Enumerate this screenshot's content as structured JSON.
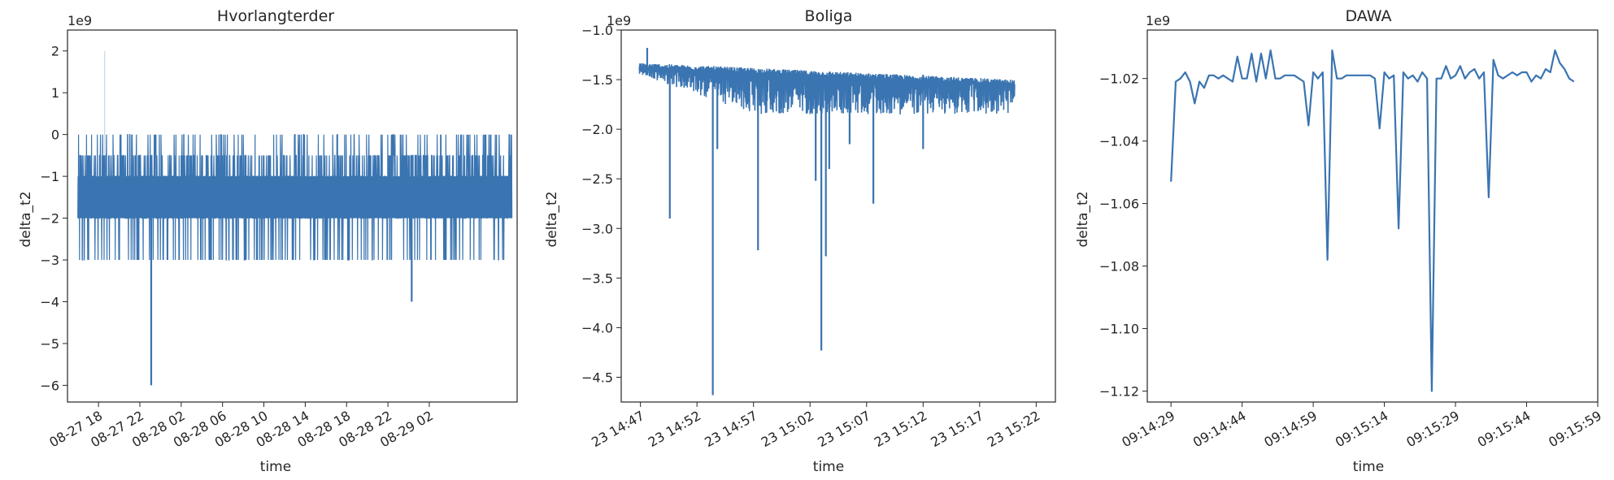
{
  "chart_data": [
    {
      "type": "line",
      "title": "Hvorlangterder",
      "xlabel": "time",
      "ylabel": "delta_t2",
      "y_offset_label": "1e9",
      "y_multiplier": 1000000000,
      "ylim": [
        -6.4,
        2.5
      ],
      "yticks": [
        2,
        1,
        0,
        -1,
        -2,
        -3,
        -4,
        -5,
        -6
      ],
      "ytick_labels": [
        "2",
        "1",
        "0",
        "−1",
        "−2",
        "−3",
        "−4",
        "−5",
        "−6"
      ],
      "xlim": [
        -1.0,
        42.5
      ],
      "xticks": [
        2,
        6,
        10,
        14,
        18,
        22,
        26,
        30,
        34
      ],
      "xtick_labels": [
        "08-27 18",
        "08-27 22",
        "08-28 02",
        "08-28 06",
        "08-28 10",
        "08-28 14",
        "08-28 18",
        "08-28 22",
        "08-29 02"
      ],
      "color": "#3a74b1",
      "x_start": 0.0,
      "x_end": 42.0,
      "series": [
        {
          "levels": [
            -3,
            -2,
            -1,
            -0.5,
            0
          ]
        },
        {
          "spikes": [
            {
              "x": 2.6,
              "y": 2
            },
            {
              "x": 7.1,
              "y": -6
            },
            {
              "x": 32.3,
              "y": -4
            }
          ]
        }
      ]
    },
    {
      "type": "line",
      "title": "Boliga",
      "xlabel": "time",
      "ylabel": "delta_t2",
      "y_offset_label": "1e9",
      "y_multiplier": 1000000000,
      "ylim": [
        -4.75,
        -1.0
      ],
      "yticks": [
        -1.0,
        -1.5,
        -2.0,
        -2.5,
        -3.0,
        -3.5,
        -4.0,
        -4.5
      ],
      "ytick_labels": [
        "−1.0",
        "−1.5",
        "−2.0",
        "−2.5",
        "−3.0",
        "−3.5",
        "−4.0",
        "−4.5"
      ],
      "xlim": [
        -1.7,
        36.7
      ],
      "xticks": [
        0,
        5,
        10,
        15,
        20,
        25,
        30,
        35
      ],
      "xtick_labels": [
        "23 14:47",
        "23 14:52",
        "23 14:57",
        "23 15:02",
        "23 15:07",
        "23 15:12",
        "23 15:17",
        "23 15:22"
      ],
      "color": "#3a74b1",
      "x_start": -0.1,
      "x_end": 33.1,
      "series": [
        {
          "upper_envelope": [
            [
              -0.1,
              -1.4
            ],
            [
              33.1,
              -1.55
            ]
          ]
        },
        {
          "lower_envelope": [
            [
              -0.1,
              -1.45
            ],
            [
              10,
              -1.85
            ],
            [
              33.1,
              -1.85
            ]
          ]
        },
        {
          "spikes": [
            {
              "x": 0.6,
              "y": -1.18
            },
            {
              "x": 2.6,
              "y": -2.9
            },
            {
              "x": 6.4,
              "y": -4.68
            },
            {
              "x": 6.8,
              "y": -2.2
            },
            {
              "x": 10.4,
              "y": -3.22
            },
            {
              "x": 15.5,
              "y": -2.52
            },
            {
              "x": 16.0,
              "y": -4.23
            },
            {
              "x": 16.4,
              "y": -3.28
            },
            {
              "x": 16.7,
              "y": -2.4
            },
            {
              "x": 20.6,
              "y": -2.75
            },
            {
              "x": 18.5,
              "y": -2.15
            },
            {
              "x": 25.0,
              "y": -2.2
            }
          ]
        }
      ]
    },
    {
      "type": "line",
      "title": "DAWA",
      "xlabel": "time",
      "ylabel": "delta_t2",
      "y_offset_label": "1e9",
      "y_multiplier": 1000000000,
      "ylim": [
        -1.1235,
        -1.0045
      ],
      "yticks": [
        -1.02,
        -1.04,
        -1.06,
        -1.08,
        -1.1,
        -1.12
      ],
      "ytick_labels": [
        "−1.02",
        "−1.04",
        "−1.06",
        "−1.08",
        "−1.10",
        "−1.12"
      ],
      "xlim": [
        -5.0,
        90.0
      ],
      "xticks": [
        10,
        25,
        40,
        55,
        70,
        85
      ],
      "xtick_labels": [
        "09:14:29",
        "09:14:44",
        "09:14:59",
        "09:15:14",
        "09:15:29",
        "09:15:44",
        "09:15:59"
      ],
      "xticks_full": [
        0,
        15,
        30,
        45,
        60,
        75,
        90
      ],
      "color": "#3a74b1",
      "x": [
        0,
        1,
        2,
        3,
        4,
        5,
        6,
        7,
        8,
        9,
        10,
        11,
        12,
        13,
        14,
        15,
        16,
        17,
        18,
        19,
        20,
        21,
        22,
        23,
        24,
        25,
        26,
        27,
        28,
        29,
        30,
        31,
        32,
        33,
        34,
        35,
        36,
        37,
        38,
        39,
        40,
        41,
        42,
        43,
        44,
        45,
        46,
        47,
        48,
        49,
        50,
        51,
        52,
        53,
        54,
        55,
        56,
        57,
        58,
        59,
        60,
        61,
        62,
        63,
        64,
        65,
        66,
        67,
        68,
        69,
        70,
        71,
        72,
        73,
        74,
        75,
        76,
        77,
        78,
        79,
        80,
        81,
        82,
        83,
        84,
        85
      ],
      "values": [
        -1.053,
        -1.021,
        -1.02,
        -1.018,
        -1.021,
        -1.028,
        -1.021,
        -1.023,
        -1.019,
        -1.019,
        -1.02,
        -1.019,
        -1.02,
        -1.021,
        -1.013,
        -1.02,
        -1.02,
        -1.012,
        -1.021,
        -1.012,
        -1.02,
        -1.011,
        -1.02,
        -1.02,
        -1.019,
        -1.019,
        -1.019,
        -1.02,
        -1.021,
        -1.035,
        -1.018,
        -1.02,
        -1.018,
        -1.078,
        -1.011,
        -1.02,
        -1.02,
        -1.019,
        -1.019,
        -1.019,
        -1.019,
        -1.019,
        -1.019,
        -1.02,
        -1.036,
        -1.018,
        -1.02,
        -1.019,
        -1.068,
        -1.018,
        -1.02,
        -1.019,
        -1.021,
        -1.018,
        -1.02,
        -1.12,
        -1.02,
        -1.02,
        -1.016,
        -1.02,
        -1.019,
        -1.016,
        -1.02,
        -1.018,
        -1.017,
        -1.02,
        -1.018,
        -1.058,
        -1.014,
        -1.019,
        -1.02,
        -1.019,
        -1.018,
        -1.019,
        -1.018,
        -1.018,
        -1.021,
        -1.019,
        -1.02,
        -1.017,
        -1.018,
        -1.011,
        -1.015,
        -1.017,
        -1.02,
        -1.021
      ]
    }
  ]
}
